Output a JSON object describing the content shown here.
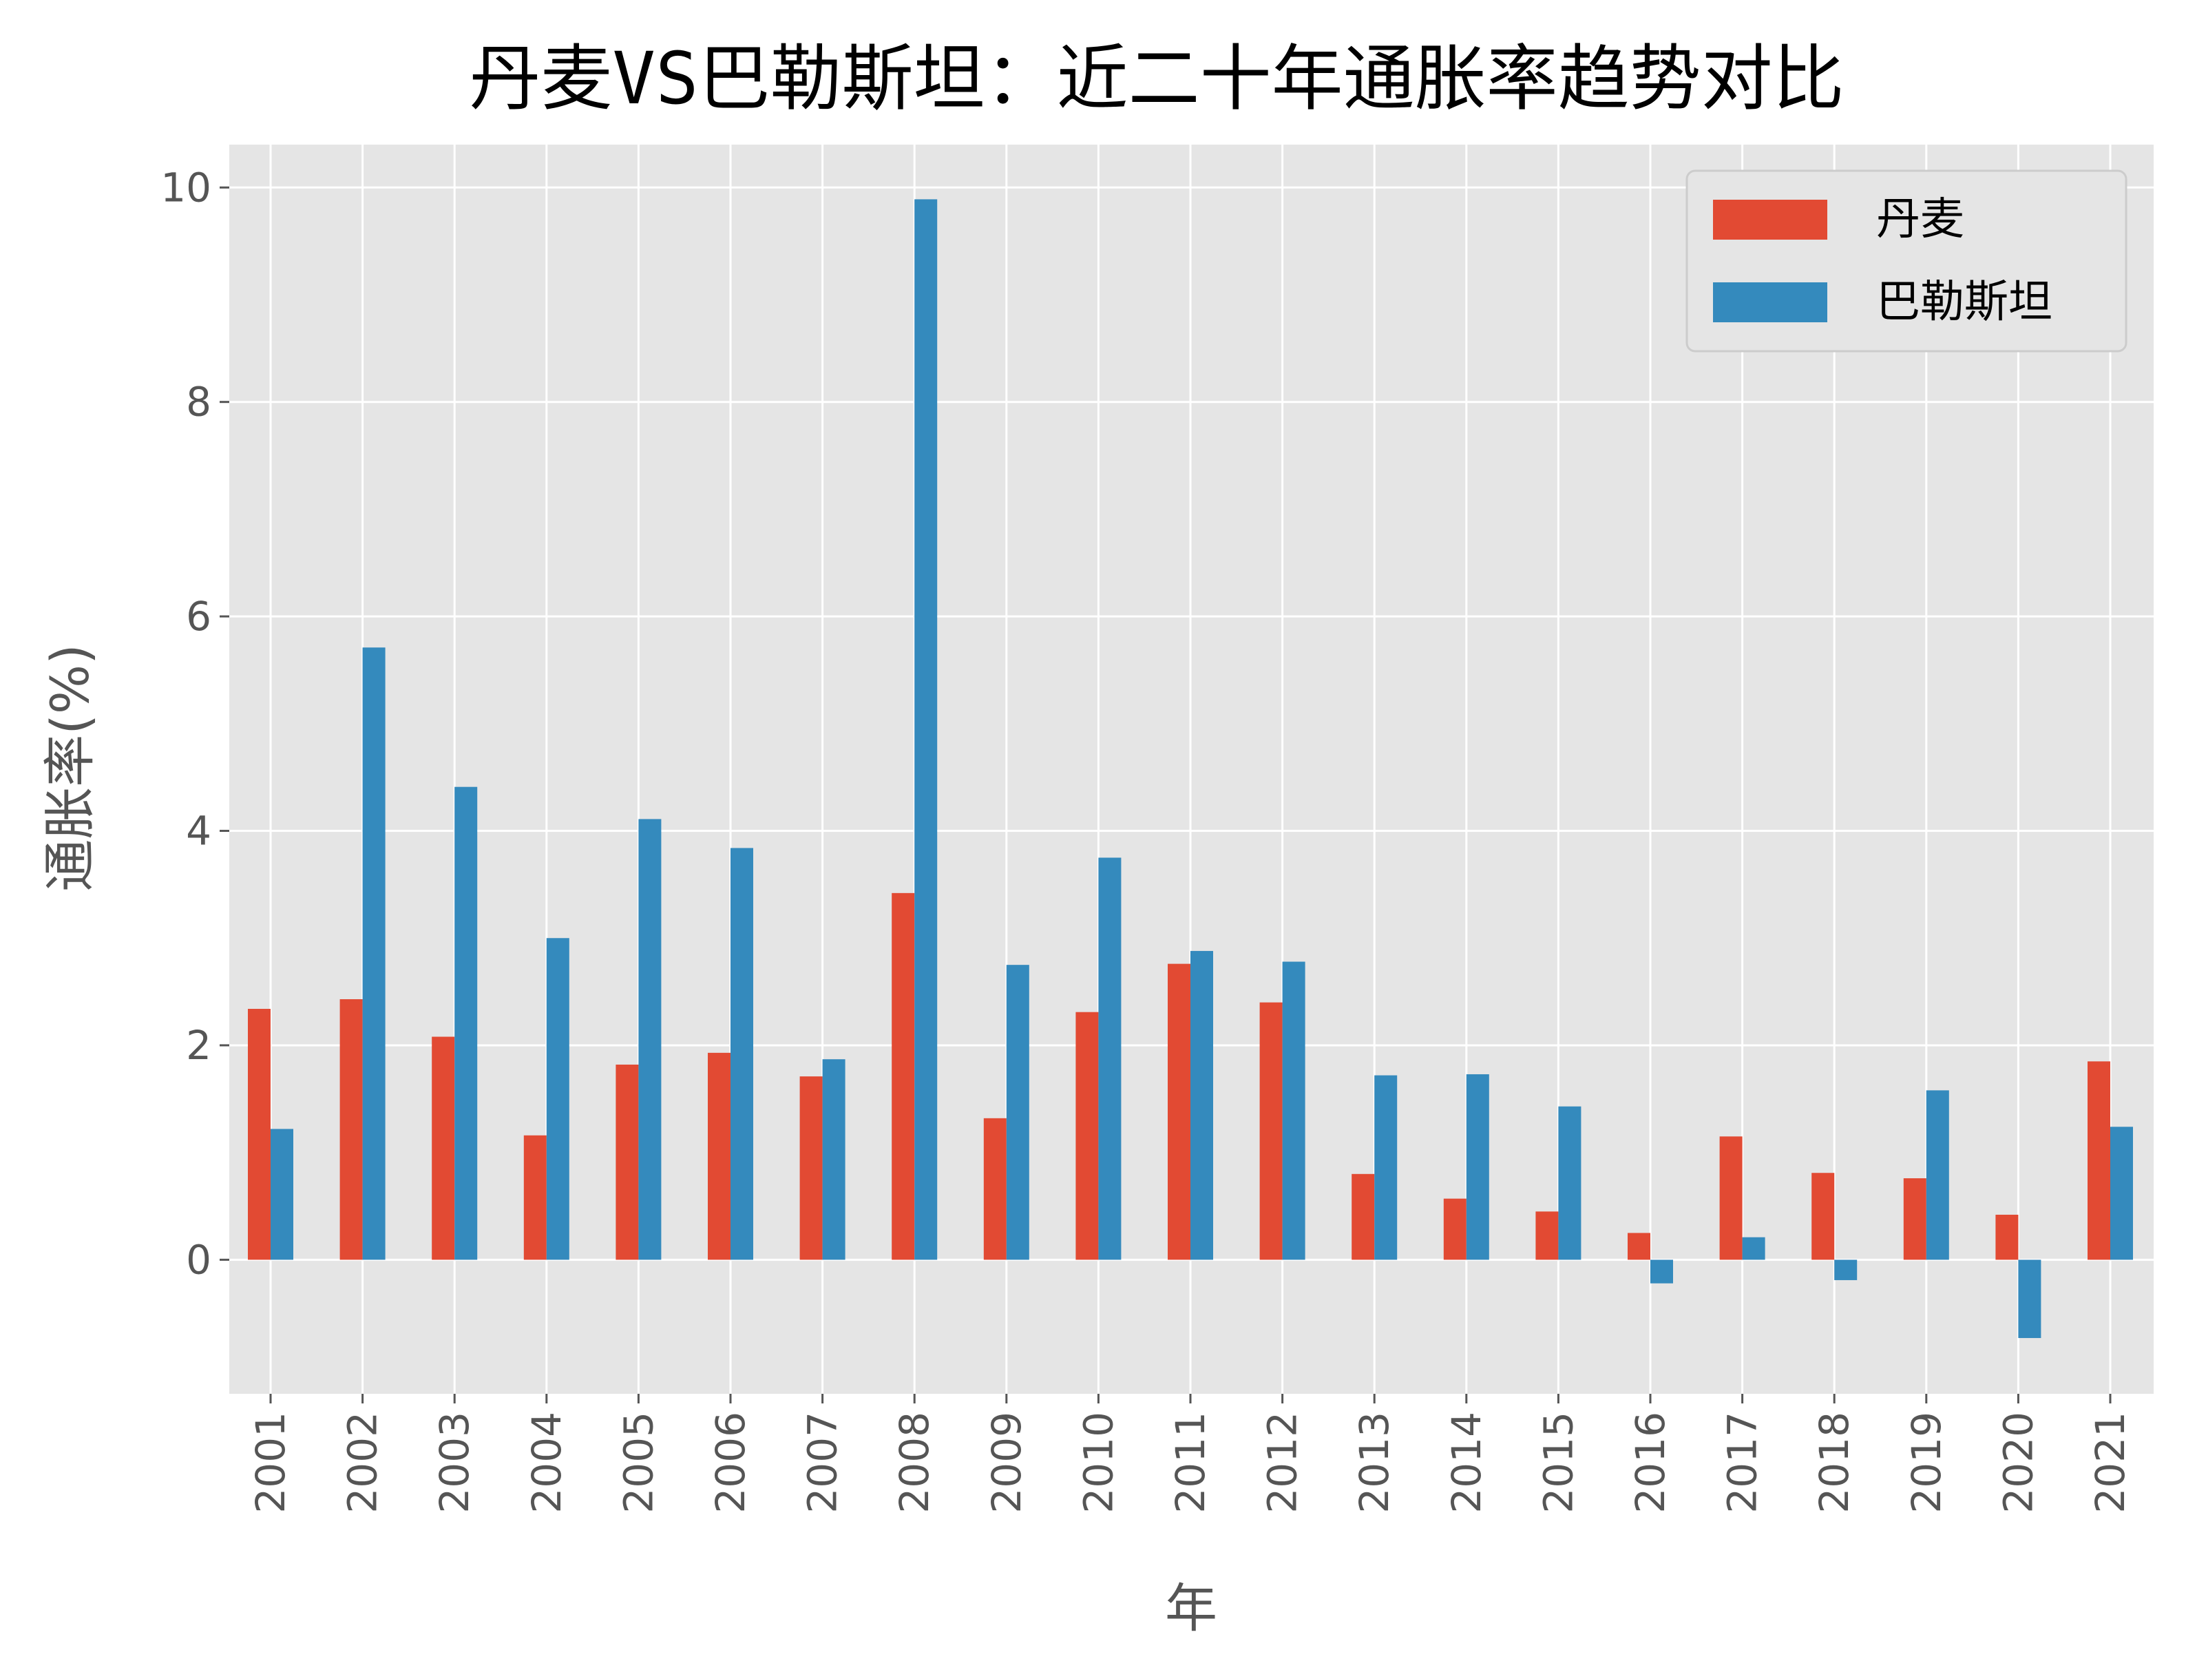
{
  "chart_data": {
    "type": "bar",
    "title": "丹麦VS巴勒斯坦：近二十年通胀率趋势对比",
    "xlabel": "年",
    "ylabel": "通胀率(%)",
    "categories": [
      "2001",
      "2002",
      "2003",
      "2004",
      "2005",
      "2006",
      "2007",
      "2008",
      "2009",
      "2010",
      "2011",
      "2012",
      "2013",
      "2014",
      "2015",
      "2016",
      "2017",
      "2018",
      "2019",
      "2020",
      "2021"
    ],
    "series": [
      {
        "name": "丹麦",
        "color": "#E24A33",
        "values": [
          2.34,
          2.43,
          2.08,
          1.16,
          1.82,
          1.93,
          1.71,
          3.42,
          1.32,
          2.31,
          2.76,
          2.4,
          0.8,
          0.57,
          0.45,
          0.25,
          1.15,
          0.81,
          0.76,
          0.42,
          1.85
        ]
      },
      {
        "name": "巴勒斯坦",
        "color": "#348ABD",
        "values": [
          1.22,
          5.71,
          4.41,
          3.0,
          4.11,
          3.84,
          1.87,
          9.89,
          2.75,
          3.75,
          2.88,
          2.78,
          1.72,
          1.73,
          1.43,
          -0.22,
          0.21,
          -0.19,
          1.58,
          -0.73,
          1.24
        ]
      }
    ],
    "ylim": [
      -1.25,
      10.4
    ],
    "yticks": [
      "0",
      "2",
      "4",
      "6",
      "8",
      "10"
    ],
    "grid": true,
    "legend_position": "top-right",
    "plot_background": "#E5E5E5"
  }
}
